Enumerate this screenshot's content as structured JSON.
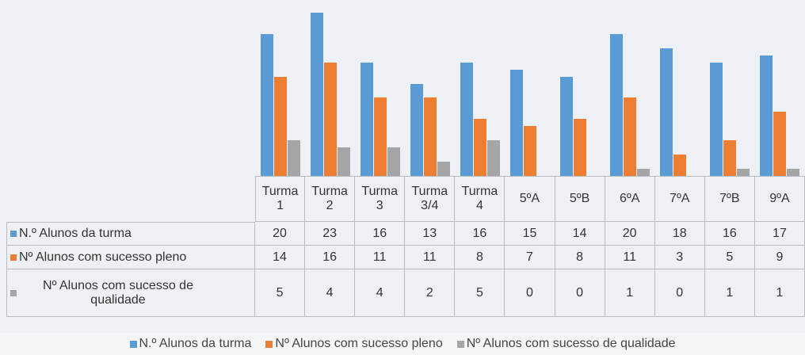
{
  "chart_data": {
    "type": "bar",
    "categories": [
      "Turma 1",
      "Turma 2",
      "Turma 3",
      "Turma 3/4",
      "Turma 4",
      "5ºA",
      "5ºB",
      "6ºA",
      "7ºA",
      "7ºB",
      "9ºA"
    ],
    "series": [
      {
        "name": "N.º Alunos da turma",
        "color": "#5b9bd5",
        "values": [
          20,
          23,
          16,
          13,
          16,
          15,
          14,
          20,
          18,
          16,
          17
        ]
      },
      {
        "name": "Nº Alunos com sucesso pleno",
        "color": "#ed7d31",
        "values": [
          14,
          16,
          11,
          11,
          8,
          7,
          8,
          11,
          3,
          5,
          9
        ]
      },
      {
        "name": "Nº Alunos com sucesso de qualidade",
        "color": "#a5a5a5",
        "values": [
          5,
          4,
          4,
          2,
          5,
          0,
          0,
          1,
          0,
          1,
          1
        ]
      }
    ],
    "ylim": [
      0,
      23
    ]
  }
}
